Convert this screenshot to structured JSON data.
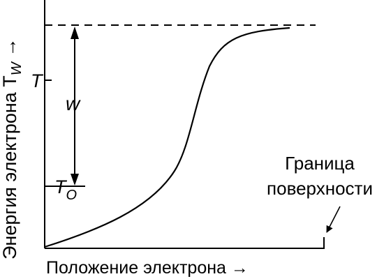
{
  "diagram": {
    "y_axis_label": "Энергия электрона T",
    "y_axis_label_sub": "W",
    "y_axis_arrow": "→",
    "x_axis_label": "Положение электрона →",
    "tick_T": "T",
    "tick_T0_main": "T",
    "tick_T0_sub": "O",
    "work_label": "w",
    "surface_label_line1": "Граница",
    "surface_label_line2": "поверхности"
  }
}
